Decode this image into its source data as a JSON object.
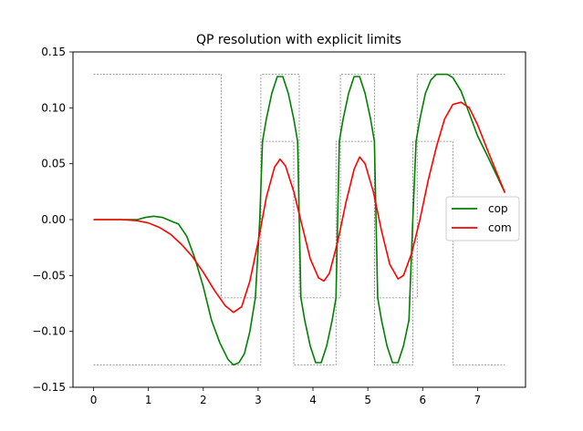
{
  "chart_data": {
    "type": "line",
    "title": "QP resolution with explicit limits",
    "xlabel": "",
    "ylabel": "",
    "xlim": [
      -0.375,
      7.875
    ],
    "ylim": [
      -0.15,
      0.15
    ],
    "xticks": [
      0,
      1,
      2,
      3,
      4,
      5,
      6,
      7
    ],
    "xtick_labels": [
      "0",
      "1",
      "2",
      "3",
      "4",
      "5",
      "6",
      "7"
    ],
    "yticks": [
      -0.15,
      -0.1,
      -0.05,
      0.0,
      0.05,
      0.1,
      0.15
    ],
    "ytick_labels": [
      "−0.15",
      "−0.10",
      "−0.05",
      "0.00",
      "0.05",
      "0.10",
      "0.15"
    ],
    "grid": false,
    "legend_position": "center-right",
    "series": [
      {
        "name": "cop",
        "color": "#008000",
        "x": [
          0,
          0.5,
          0.8,
          0.95,
          1.1,
          1.25,
          1.35,
          1.45,
          1.55,
          1.7,
          1.85,
          2.0,
          2.15,
          2.3,
          2.45,
          2.55,
          2.65,
          2.75,
          2.85,
          2.95,
          3.03,
          3.08,
          3.15,
          3.25,
          3.35,
          3.45,
          3.55,
          3.65,
          3.72,
          3.78,
          3.85,
          3.95,
          4.05,
          4.15,
          4.25,
          4.35,
          4.42,
          4.48,
          4.55,
          4.65,
          4.75,
          4.85,
          4.95,
          5.05,
          5.12,
          5.18,
          5.25,
          5.35,
          5.45,
          5.55,
          5.65,
          5.75,
          5.82,
          5.88,
          5.95,
          6.05,
          6.15,
          6.25,
          6.35,
          6.45,
          6.55,
          6.7,
          6.85,
          7.0,
          7.2,
          7.5
        ],
        "y": [
          0.0,
          0.0,
          0.0,
          0.002,
          0.003,
          0.002,
          0.0,
          -0.002,
          -0.004,
          -0.015,
          -0.035,
          -0.06,
          -0.09,
          -0.11,
          -0.125,
          -0.13,
          -0.128,
          -0.12,
          -0.1,
          -0.07,
          0.0,
          0.07,
          0.09,
          0.113,
          0.128,
          0.128,
          0.113,
          0.09,
          0.07,
          -0.07,
          -0.09,
          -0.113,
          -0.128,
          -0.128,
          -0.113,
          -0.09,
          -0.07,
          0.07,
          0.09,
          0.113,
          0.128,
          0.128,
          0.113,
          0.09,
          0.07,
          -0.07,
          -0.09,
          -0.113,
          -0.128,
          -0.128,
          -0.113,
          -0.09,
          0.0,
          0.07,
          0.09,
          0.113,
          0.125,
          0.13,
          0.13,
          0.13,
          0.127,
          0.115,
          0.095,
          0.075,
          0.055,
          0.024
        ]
      },
      {
        "name": "com",
        "color": "#ff0000",
        "x": [
          0,
          0.5,
          0.8,
          1.0,
          1.2,
          1.4,
          1.6,
          1.8,
          2.0,
          2.2,
          2.4,
          2.55,
          2.7,
          2.85,
          3.0,
          3.15,
          3.3,
          3.4,
          3.5,
          3.65,
          3.8,
          3.95,
          4.1,
          4.2,
          4.3,
          4.45,
          4.6,
          4.75,
          4.85,
          4.95,
          5.1,
          5.25,
          5.4,
          5.55,
          5.65,
          5.8,
          5.95,
          6.1,
          6.25,
          6.4,
          6.55,
          6.7,
          6.85,
          7.0,
          7.2,
          7.5
        ],
        "y": [
          0.0,
          0.0,
          -0.001,
          -0.003,
          -0.007,
          -0.013,
          -0.022,
          -0.033,
          -0.047,
          -0.063,
          -0.077,
          -0.083,
          -0.078,
          -0.055,
          -0.02,
          0.02,
          0.047,
          0.054,
          0.048,
          0.025,
          -0.005,
          -0.035,
          -0.052,
          -0.055,
          -0.048,
          -0.02,
          0.015,
          0.045,
          0.056,
          0.05,
          0.025,
          -0.01,
          -0.04,
          -0.053,
          -0.05,
          -0.03,
          0.0,
          0.035,
          0.065,
          0.09,
          0.103,
          0.105,
          0.1,
          0.085,
          0.06,
          0.024
        ]
      }
    ],
    "limits": {
      "color": "#808080",
      "upper": {
        "x": [
          0,
          2.33,
          2.33,
          3.05,
          3.05,
          3.75,
          3.75,
          4.5,
          4.5,
          5.12,
          5.12,
          5.9,
          5.9,
          6.55,
          6.55,
          7.5
        ],
        "y": [
          0.13,
          0.13,
          -0.07,
          -0.07,
          0.13,
          0.13,
          -0.07,
          -0.07,
          0.13,
          0.13,
          -0.07,
          -0.07,
          0.13,
          0.13,
          0.13,
          0.13
        ]
      },
      "lower": {
        "x": [
          0,
          3.05,
          3.05,
          3.65,
          3.65,
          4.42,
          4.42,
          5.12,
          5.12,
          5.82,
          5.82,
          6.55,
          6.55,
          7.5
        ],
        "y": [
          -0.13,
          -0.13,
          0.07,
          0.07,
          -0.13,
          -0.13,
          0.07,
          0.07,
          -0.13,
          -0.13,
          0.07,
          0.07,
          -0.13,
          -0.13
        ]
      }
    }
  }
}
